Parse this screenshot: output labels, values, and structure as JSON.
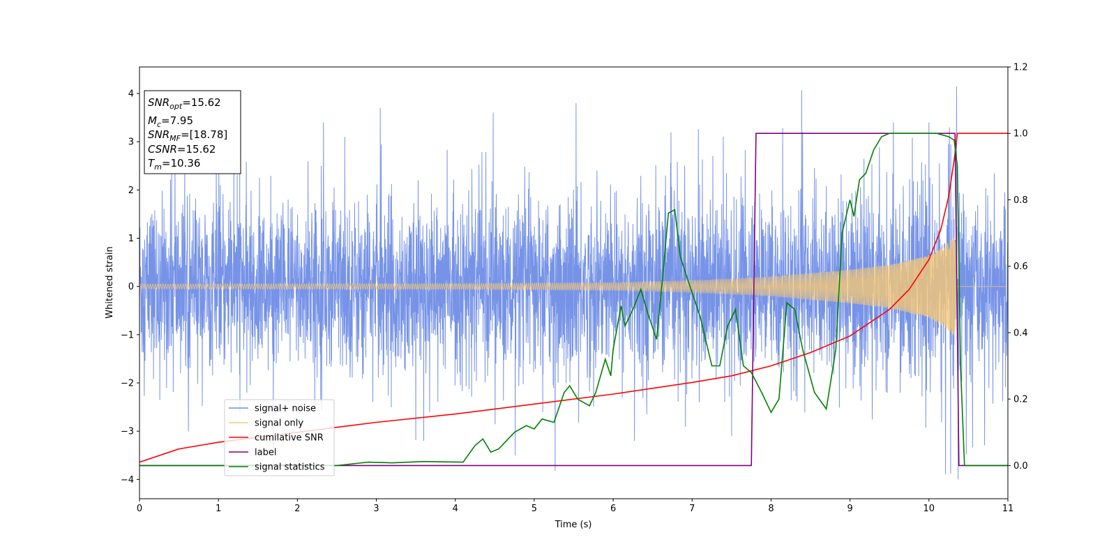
{
  "chart_data": {
    "type": "line",
    "xlabel": "Time (s)",
    "ylabel": "Whitened strain",
    "xlim": [
      0,
      11
    ],
    "ylim": [
      -4.4,
      4.55
    ],
    "y2lim": [
      -0.1,
      1.2
    ],
    "xticks": [
      0,
      1,
      2,
      3,
      4,
      5,
      6,
      7,
      8,
      9,
      10,
      11
    ],
    "yticks": [
      -4,
      -3,
      -2,
      -1,
      0,
      1,
      2,
      3,
      4
    ],
    "y2ticks": [
      0.0,
      0.2,
      0.4,
      0.6,
      0.8,
      1.0,
      1.2
    ],
    "y2tick_labels": [
      "0.0",
      "0.2",
      "0.4",
      "0.6",
      "0.8",
      "1.0",
      "1.2"
    ],
    "grid": false,
    "legend_position": "lower-left",
    "annotation": {
      "lines": [
        {
          "var": "SNR",
          "sub": "opt",
          "value": "=15.62"
        },
        {
          "var": "M",
          "sub": "c",
          "value": "=7.95"
        },
        {
          "var": "SNR",
          "sub": "MF",
          "value": "=[18.78]"
        },
        {
          "var": "CSNR",
          "sub": "",
          "value": "=15.62"
        },
        {
          "var": "T",
          "sub": "m",
          "value": "=10.36"
        }
      ]
    },
    "series": [
      {
        "name": "signal+ noise",
        "axis": "left",
        "color": "#6f8de6",
        "kind": "noise",
        "note_peaks": [
          [
            0.45,
            2.9
          ],
          [
            0.62,
            -3.0
          ],
          [
            1.27,
            2.6
          ],
          [
            2.33,
            3.4
          ],
          [
            2.6,
            3.1
          ],
          [
            3.05,
            3.7
          ],
          [
            3.6,
            -3.2
          ],
          [
            4.48,
            3.6
          ],
          [
            4.76,
            -3.5
          ],
          [
            5.53,
            3.8
          ],
          [
            6.27,
            -3.2
          ],
          [
            7.5,
            -3.1
          ],
          [
            8.4,
            3.2
          ],
          [
            9.55,
            3.4
          ],
          [
            10.0,
            3.4
          ],
          [
            10.26,
            3.3
          ],
          [
            10.35,
            4.15
          ],
          [
            10.37,
            -4.0
          ]
        ]
      },
      {
        "name": "signal only",
        "axis": "left",
        "color": "#f5c877",
        "kind": "chirp",
        "merger_time": 10.36,
        "amplitude_points": [
          [
            0,
            0.05
          ],
          [
            4,
            0.06
          ],
          [
            6,
            0.08
          ],
          [
            7,
            0.12
          ],
          [
            8,
            0.2
          ],
          [
            9,
            0.35
          ],
          [
            9.5,
            0.45
          ],
          [
            10,
            0.65
          ],
          [
            10.2,
            0.85
          ],
          [
            10.33,
            1.05
          ],
          [
            10.36,
            0.0
          ]
        ]
      },
      {
        "name": "cumilative SNR",
        "axis": "right",
        "color": "#ff0000",
        "kind": "line",
        "points": [
          [
            0,
            0.01
          ],
          [
            0.5,
            0.05
          ],
          [
            1,
            0.07
          ],
          [
            2,
            0.1
          ],
          [
            3,
            0.13
          ],
          [
            4,
            0.155
          ],
          [
            5,
            0.185
          ],
          [
            6,
            0.215
          ],
          [
            7,
            0.25
          ],
          [
            7.5,
            0.27
          ],
          [
            8,
            0.3
          ],
          [
            8.5,
            0.34
          ],
          [
            9,
            0.39
          ],
          [
            9.5,
            0.47
          ],
          [
            9.75,
            0.53
          ],
          [
            10,
            0.62
          ],
          [
            10.15,
            0.71
          ],
          [
            10.25,
            0.81
          ],
          [
            10.32,
            0.92
          ],
          [
            10.36,
            1.0
          ],
          [
            11,
            1.0
          ]
        ]
      },
      {
        "name": "label",
        "axis": "right",
        "color": "#800080",
        "kind": "line",
        "points": [
          [
            0,
            0.0
          ],
          [
            7.75,
            0.0
          ],
          [
            7.81,
            1.0
          ],
          [
            10.33,
            1.0
          ],
          [
            10.38,
            0.0
          ],
          [
            11,
            0.0
          ]
        ]
      },
      {
        "name": "signal statistics",
        "axis": "right",
        "color": "#008000",
        "kind": "line",
        "points": [
          [
            0,
            0.0
          ],
          [
            1,
            0.0
          ],
          [
            2,
            0.002
          ],
          [
            2.5,
            0.0
          ],
          [
            2.9,
            0.01
          ],
          [
            3.2,
            0.008
          ],
          [
            3.6,
            0.012
          ],
          [
            4.1,
            0.01
          ],
          [
            4.25,
            0.06
          ],
          [
            4.35,
            0.08
          ],
          [
            4.45,
            0.04
          ],
          [
            4.55,
            0.05
          ],
          [
            4.75,
            0.1
          ],
          [
            4.9,
            0.12
          ],
          [
            5.0,
            0.11
          ],
          [
            5.1,
            0.14
          ],
          [
            5.25,
            0.13
          ],
          [
            5.38,
            0.22
          ],
          [
            5.45,
            0.24
          ],
          [
            5.55,
            0.2
          ],
          [
            5.7,
            0.18
          ],
          [
            5.78,
            0.22
          ],
          [
            5.9,
            0.32
          ],
          [
            5.97,
            0.27
          ],
          [
            6.0,
            0.35
          ],
          [
            6.1,
            0.48
          ],
          [
            6.15,
            0.42
          ],
          [
            6.25,
            0.47
          ],
          [
            6.35,
            0.53
          ],
          [
            6.45,
            0.45
          ],
          [
            6.55,
            0.38
          ],
          [
            6.62,
            0.55
          ],
          [
            6.7,
            0.76
          ],
          [
            6.78,
            0.77
          ],
          [
            6.85,
            0.63
          ],
          [
            6.93,
            0.57
          ],
          [
            7.0,
            0.52
          ],
          [
            7.1,
            0.45
          ],
          [
            7.25,
            0.3
          ],
          [
            7.35,
            0.3
          ],
          [
            7.45,
            0.42
          ],
          [
            7.55,
            0.47
          ],
          [
            7.65,
            0.3
          ],
          [
            7.75,
            0.28
          ],
          [
            7.88,
            0.22
          ],
          [
            8.0,
            0.16
          ],
          [
            8.1,
            0.2
          ],
          [
            8.2,
            0.49
          ],
          [
            8.3,
            0.47
          ],
          [
            8.4,
            0.35
          ],
          [
            8.55,
            0.22
          ],
          [
            8.7,
            0.17
          ],
          [
            8.82,
            0.35
          ],
          [
            8.9,
            0.7
          ],
          [
            9.0,
            0.8
          ],
          [
            9.05,
            0.75
          ],
          [
            9.12,
            0.86
          ],
          [
            9.2,
            0.88
          ],
          [
            9.3,
            0.95
          ],
          [
            9.4,
            0.99
          ],
          [
            9.5,
            1.0
          ],
          [
            9.9,
            1.0
          ],
          [
            10.1,
            1.0
          ],
          [
            10.25,
            0.99
          ],
          [
            10.32,
            0.98
          ],
          [
            10.36,
            0.9
          ],
          [
            10.4,
            0.3
          ],
          [
            10.45,
            0.0
          ],
          [
            11,
            0.0
          ]
        ]
      }
    ]
  }
}
